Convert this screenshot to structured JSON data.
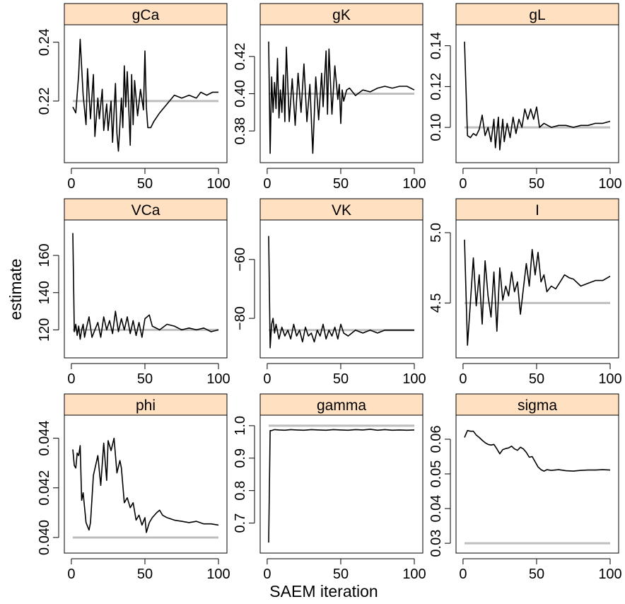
{
  "figure": {
    "xlabel": "SAEM iteration",
    "ylabel": "estimate"
  },
  "colors": {
    "strip_fill": "#ffe0c0",
    "trace": "#000000",
    "truth_line": "#bebebe"
  },
  "chart_data": [
    {
      "type": "line",
      "title": "gCa",
      "xlim": [
        1,
        100
      ],
      "ylim": [
        0.201,
        0.244
      ],
      "xticks": [
        0,
        50,
        100
      ],
      "xtick_labels": [
        "0",
        "50",
        "100"
      ],
      "yticks": [
        0.22,
        0.24
      ],
      "ytick_labels": [
        "0.22",
        "0.24"
      ],
      "true_value": 0.22,
      "x": [
        1,
        3,
        5,
        6,
        8,
        10,
        11,
        13,
        15,
        16,
        18,
        19,
        21,
        22,
        24,
        25,
        27,
        28,
        30,
        31,
        32,
        34,
        35,
        36,
        37,
        38,
        40,
        41,
        42,
        43,
        45,
        47,
        49,
        50,
        51,
        52,
        54,
        56,
        60,
        65,
        70,
        75,
        80,
        85,
        88,
        92,
        96,
        100
      ],
      "values": [
        0.218,
        0.216,
        0.229,
        0.241,
        0.222,
        0.212,
        0.231,
        0.214,
        0.229,
        0.208,
        0.221,
        0.214,
        0.224,
        0.21,
        0.219,
        0.21,
        0.22,
        0.206,
        0.226,
        0.209,
        0.203,
        0.221,
        0.211,
        0.232,
        0.218,
        0.23,
        0.205,
        0.229,
        0.212,
        0.227,
        0.215,
        0.224,
        0.217,
        0.237,
        0.218,
        0.211,
        0.211,
        0.213,
        0.216,
        0.219,
        0.222,
        0.221,
        0.222,
        0.221,
        0.223,
        0.222,
        0.223,
        0.223
      ]
    },
    {
      "type": "line",
      "title": "gK",
      "xlim": [
        1,
        100
      ],
      "ylim": [
        0.366,
        0.434
      ],
      "xticks": [
        0,
        50,
        100
      ],
      "xtick_labels": [
        "0",
        "50",
        "100"
      ],
      "yticks": [
        0.38,
        0.4,
        0.42
      ],
      "ytick_labels": [
        "0.38",
        "0.40",
        "0.42"
      ],
      "true_value": 0.4,
      "x": [
        1,
        2,
        3,
        4,
        5,
        6,
        7,
        8,
        9,
        10,
        11,
        12,
        13,
        15,
        17,
        19,
        21,
        23,
        25,
        27,
        29,
        31,
        33,
        35,
        37,
        38,
        40,
        41,
        42,
        44,
        46,
        48,
        49,
        50,
        51,
        52,
        54,
        56,
        60,
        65,
        70,
        75,
        80,
        85,
        90,
        95,
        100
      ],
      "values": [
        0.428,
        0.368,
        0.409,
        0.39,
        0.406,
        0.392,
        0.419,
        0.387,
        0.402,
        0.39,
        0.41,
        0.385,
        0.425,
        0.385,
        0.408,
        0.383,
        0.411,
        0.39,
        0.416,
        0.385,
        0.405,
        0.368,
        0.409,
        0.386,
        0.411,
        0.393,
        0.423,
        0.389,
        0.424,
        0.389,
        0.415,
        0.397,
        0.405,
        0.384,
        0.402,
        0.396,
        0.402,
        0.403,
        0.399,
        0.402,
        0.401,
        0.403,
        0.404,
        0.403,
        0.404,
        0.404,
        0.402
      ]
    },
    {
      "type": "line",
      "title": "gL",
      "xlim": [
        1,
        100
      ],
      "ylim": [
        0.0855,
        0.1475
      ],
      "xticks": [
        0,
        50,
        100
      ],
      "xtick_labels": [
        "0",
        "50",
        "100"
      ],
      "yticks": [
        0.1,
        0.12,
        0.14
      ],
      "ytick_labels": [
        "0.10",
        "0.12",
        "0.14"
      ],
      "true_value": 0.1,
      "x": [
        1,
        3,
        5,
        7,
        9,
        11,
        13,
        15,
        17,
        19,
        21,
        22,
        24,
        25,
        27,
        28,
        30,
        32,
        34,
        36,
        38,
        40,
        42,
        44,
        46,
        48,
        50,
        52,
        55,
        60,
        65,
        70,
        75,
        80,
        85,
        90,
        95,
        100
      ],
      "values": [
        0.142,
        0.096,
        0.095,
        0.097,
        0.096,
        0.099,
        0.106,
        0.096,
        0.1,
        0.093,
        0.104,
        0.09,
        0.105,
        0.089,
        0.104,
        0.093,
        0.102,
        0.095,
        0.105,
        0.097,
        0.104,
        0.1,
        0.109,
        0.104,
        0.109,
        0.104,
        0.11,
        0.1,
        0.102,
        0.1,
        0.101,
        0.101,
        0.1,
        0.101,
        0.101,
        0.102,
        0.102,
        0.103
      ]
    },
    {
      "type": "line",
      "title": "VCa",
      "xlim": [
        1,
        100
      ],
      "ylim": [
        108,
        176
      ],
      "xticks": [
        0,
        50,
        100
      ],
      "xtick_labels": [
        "0",
        "50",
        "100"
      ],
      "yticks": [
        120,
        140,
        160
      ],
      "ytick_labels": [
        "120",
        "140",
        "160"
      ],
      "true_value": 120,
      "x": [
        1,
        2,
        3,
        4,
        5,
        6,
        7,
        8,
        9,
        10,
        12,
        14,
        16,
        18,
        20,
        22,
        24,
        26,
        28,
        30,
        32,
        34,
        36,
        38,
        40,
        42,
        44,
        46,
        48,
        50,
        53,
        55,
        60,
        65,
        70,
        75,
        80,
        85,
        90,
        95,
        100
      ],
      "values": [
        172,
        119,
        123,
        117,
        122,
        115,
        120,
        123,
        116,
        120,
        127,
        116,
        120,
        124,
        116,
        127,
        120,
        125,
        118,
        130,
        119,
        126,
        120,
        127,
        118,
        125,
        117,
        124,
        116,
        126,
        128,
        122,
        120,
        123,
        122,
        120,
        121,
        120,
        121,
        119,
        120
      ]
    },
    {
      "type": "line",
      "title": "VK",
      "xlim": [
        1,
        100
      ],
      "ylim": [
        -91.5,
        -48.5
      ],
      "xticks": [
        0,
        50,
        100
      ],
      "xtick_labels": [
        "0",
        "50",
        "100"
      ],
      "yticks": [
        -80,
        -60
      ],
      "ytick_labels": [
        "−80",
        "−60"
      ],
      "true_value": -84,
      "x": [
        1,
        2,
        3,
        4,
        5,
        6,
        8,
        10,
        12,
        14,
        16,
        18,
        20,
        22,
        24,
        26,
        28,
        30,
        32,
        34,
        36,
        38,
        40,
        42,
        44,
        46,
        48,
        50,
        52,
        55,
        60,
        65,
        70,
        75,
        80,
        85,
        90,
        95,
        100
      ],
      "values": [
        -52,
        -90,
        -82,
        -80,
        -85,
        -82,
        -87,
        -83,
        -86,
        -84,
        -87,
        -82,
        -86,
        -84,
        -88,
        -83,
        -86,
        -85,
        -88,
        -84,
        -86,
        -82,
        -87,
        -84,
        -86,
        -83,
        -87,
        -82,
        -85,
        -86,
        -84,
        -85,
        -84,
        -85,
        -84,
        -84,
        -84,
        -84,
        -84
      ]
    },
    {
      "type": "line",
      "title": "I",
      "xlim": [
        1,
        100
      ],
      "ylim": [
        4.15,
        5.05
      ],
      "xticks": [
        0,
        50,
        100
      ],
      "xtick_labels": [
        "0",
        "50",
        "100"
      ],
      "yticks": [
        4.5,
        5.0
      ],
      "ytick_labels": [
        "4.5",
        "5.0"
      ],
      "true_value": 4.5,
      "x": [
        1,
        3,
        5,
        7,
        9,
        11,
        13,
        15,
        17,
        19,
        21,
        23,
        25,
        27,
        29,
        31,
        33,
        35,
        37,
        39,
        41,
        43,
        45,
        47,
        49,
        51,
        53,
        55,
        57,
        60,
        63,
        66,
        69,
        72,
        75,
        80,
        85,
        90,
        95,
        100
      ],
      "values": [
        4.95,
        4.2,
        4.5,
        4.82,
        4.48,
        4.7,
        4.35,
        4.8,
        4.55,
        4.4,
        4.72,
        4.3,
        4.75,
        4.52,
        4.62,
        4.55,
        4.72,
        4.58,
        4.65,
        4.42,
        4.6,
        4.78,
        4.62,
        4.88,
        4.7,
        4.86,
        4.65,
        4.7,
        4.58,
        4.62,
        4.6,
        4.65,
        4.7,
        4.68,
        4.67,
        4.62,
        4.64,
        4.66,
        4.66,
        4.69
      ]
    },
    {
      "type": "line",
      "title": "phi",
      "xlim": [
        1,
        100
      ],
      "ylim": [
        0.0396,
        0.0447
      ],
      "xticks": [
        0,
        50,
        100
      ],
      "xtick_labels": [
        "0",
        "50",
        "100"
      ],
      "yticks": [
        0.04,
        0.042,
        0.044
      ],
      "ytick_labels": [
        "0.040",
        "0.042",
        "0.044"
      ],
      "true_value": 0.04,
      "x": [
        1,
        2,
        3,
        4,
        5,
        6,
        7,
        8,
        10,
        12,
        13,
        15,
        18,
        20,
        22,
        24,
        25,
        27,
        29,
        31,
        33,
        34,
        36,
        38,
        40,
        42,
        44,
        46,
        48,
        50,
        51,
        53,
        55,
        58,
        60,
        62,
        65,
        70,
        75,
        80,
        85,
        90,
        95,
        100
      ],
      "values": [
        0.04355,
        0.0429,
        0.0428,
        0.0434,
        0.0433,
        0.0437,
        0.0415,
        0.0418,
        0.0406,
        0.0403,
        0.0406,
        0.0425,
        0.0433,
        0.0421,
        0.0438,
        0.0423,
        0.0439,
        0.0435,
        0.044,
        0.0426,
        0.0431,
        0.0428,
        0.0414,
        0.0416,
        0.0412,
        0.0414,
        0.0407,
        0.0409,
        0.0405,
        0.0408,
        0.0402,
        0.0406,
        0.0408,
        0.041,
        0.0411,
        0.0409,
        0.0408,
        0.0407,
        0.04065,
        0.0406,
        0.04065,
        0.04055,
        0.04055,
        0.0405
      ]
    },
    {
      "type": "line",
      "title": "gamma",
      "xlim": [
        1,
        100
      ],
      "ylim": [
        0.625,
        1.015
      ],
      "xticks": [
        0,
        50,
        100
      ],
      "xtick_labels": [
        "0",
        "50",
        "100"
      ],
      "yticks": [
        0.7,
        0.8,
        0.9,
        1.0
      ],
      "ytick_labels": [
        "0.7",
        "0.8",
        "0.9",
        "1.0"
      ],
      "true_value": 1.0,
      "x": [
        1,
        2,
        3,
        5,
        8,
        12,
        16,
        20,
        25,
        30,
        35,
        40,
        45,
        50,
        55,
        60,
        65,
        70,
        75,
        80,
        85,
        90,
        95,
        100
      ],
      "values": [
        0.64,
        0.985,
        0.985,
        0.988,
        0.987,
        0.986,
        0.988,
        0.987,
        0.986,
        0.988,
        0.987,
        0.986,
        0.988,
        0.987,
        0.986,
        0.988,
        0.987,
        0.989,
        0.986,
        0.988,
        0.986,
        0.987,
        0.986,
        0.987
      ]
    },
    {
      "type": "line",
      "title": "sigma",
      "xlim": [
        1,
        100
      ],
      "ylim": [
        0.0288,
        0.0653
      ],
      "xticks": [
        0,
        50,
        100
      ],
      "xtick_labels": [
        "0",
        "50",
        "100"
      ],
      "yticks": [
        0.03,
        0.04,
        0.05,
        0.06
      ],
      "ytick_labels": [
        "0.03",
        "0.04",
        "0.05",
        "0.06"
      ],
      "true_value": 0.03,
      "x": [
        1,
        3,
        5,
        7,
        9,
        11,
        13,
        15,
        17,
        19,
        21,
        23,
        25,
        27,
        29,
        31,
        33,
        35,
        37,
        39,
        41,
        43,
        45,
        47,
        49,
        51,
        53,
        55,
        57,
        60,
        65,
        70,
        75,
        80,
        85,
        90,
        95,
        100
      ],
      "values": [
        0.0605,
        0.0625,
        0.0623,
        0.0623,
        0.0612,
        0.0605,
        0.0597,
        0.059,
        0.0585,
        0.0583,
        0.0585,
        0.0572,
        0.0558,
        0.057,
        0.0573,
        0.0575,
        0.058,
        0.0572,
        0.0568,
        0.0577,
        0.0572,
        0.0562,
        0.0548,
        0.055,
        0.0535,
        0.052,
        0.0512,
        0.0508,
        0.0512,
        0.051,
        0.0512,
        0.0509,
        0.0508,
        0.051,
        0.0511,
        0.0511,
        0.0512,
        0.0511
      ]
    }
  ]
}
